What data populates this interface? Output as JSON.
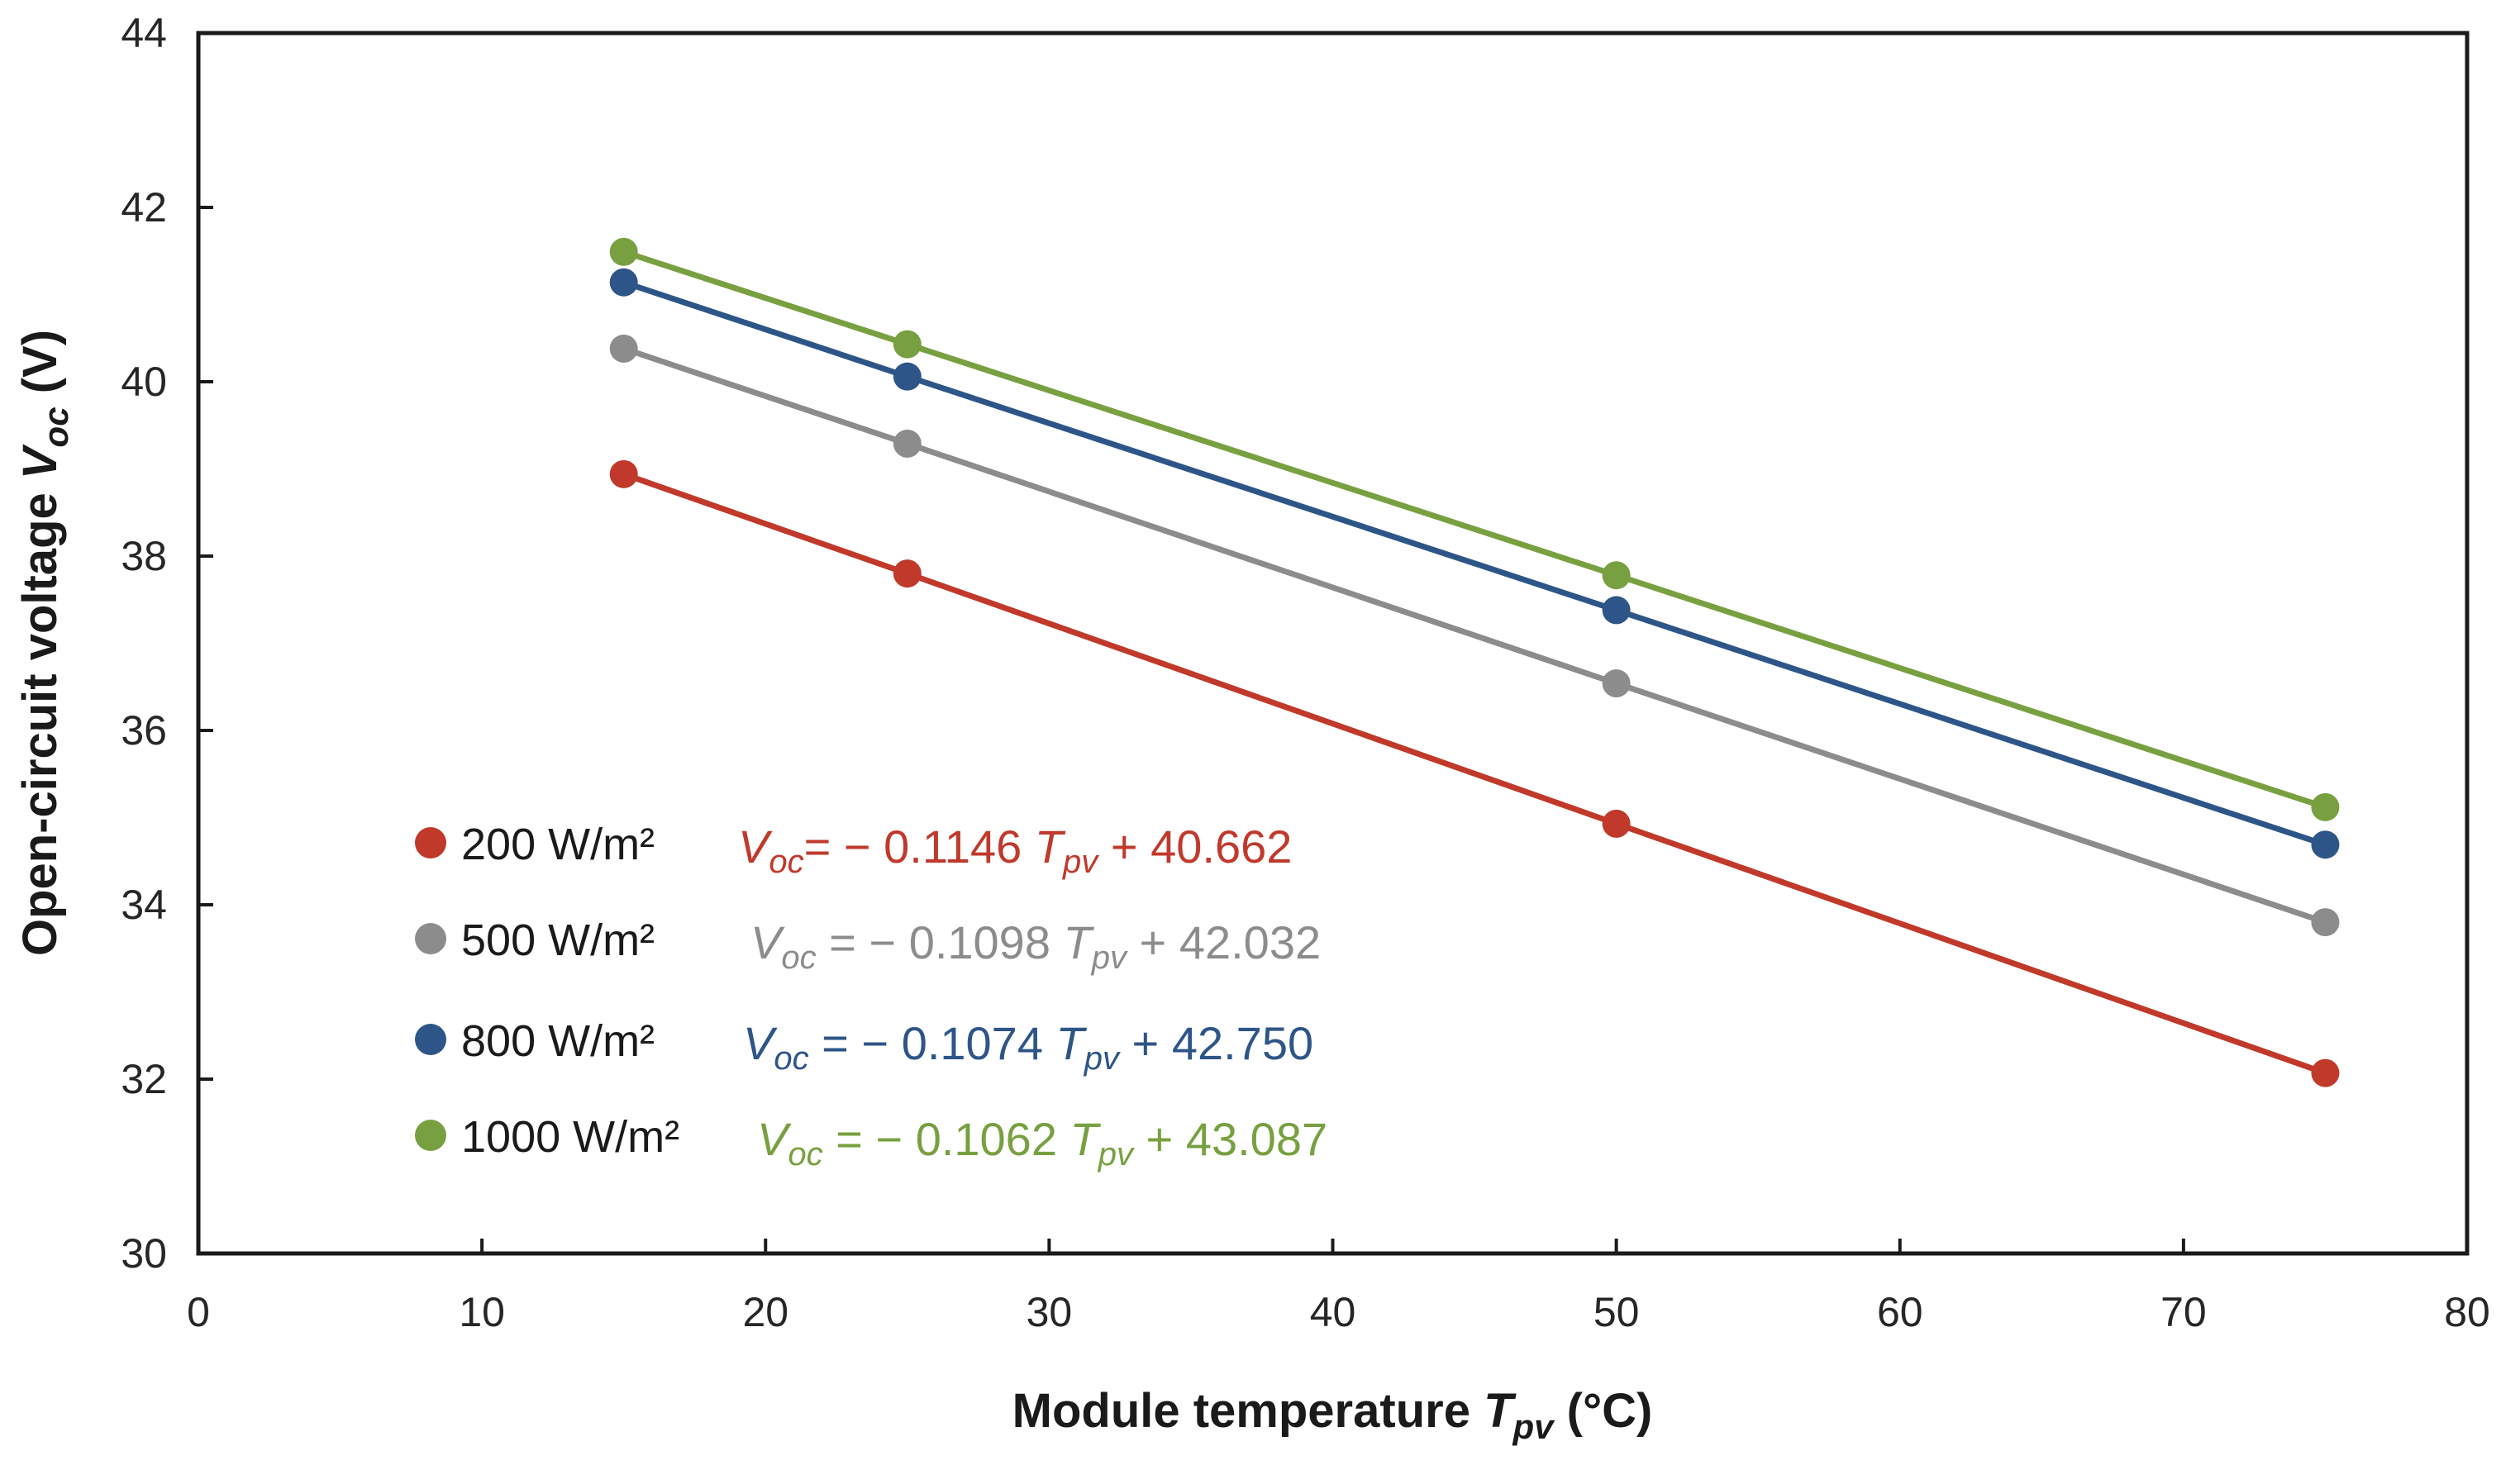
{
  "chart_data": {
    "type": "line",
    "title": "",
    "xlabel": {
      "main": "Module temperature ",
      "var": "T",
      "sub": "pv",
      "unit": " (°C)"
    },
    "ylabel": {
      "main": "Open-circuit voltage ",
      "var": "V",
      "sub": "oc",
      "unit": " (V)"
    },
    "xlim": [
      0,
      80
    ],
    "ylim": [
      30,
      44
    ],
    "x_ticks": [
      0,
      10,
      20,
      30,
      40,
      50,
      60,
      70,
      80
    ],
    "y_ticks": [
      30,
      32,
      34,
      36,
      38,
      40,
      42,
      44
    ],
    "grid": false,
    "legend_position": "bottom-left",
    "series": [
      {
        "name": "200 W/m²",
        "color": "#c0392b",
        "x": [
          15,
          25,
          50,
          75
        ],
        "y": [
          38.94,
          37.8,
          34.93,
          32.07
        ],
        "equation": {
          "var": "V",
          "sub": "oc",
          "mid": "= − 0.1146 ",
          "var2": "T",
          "sub2": "pv",
          "tail": " + 40.662"
        }
      },
      {
        "name": "500 W/m²",
        "color": "#8c8c8c",
        "x": [
          15,
          25,
          50,
          75
        ],
        "y": [
          40.38,
          39.29,
          36.54,
          33.8
        ],
        "equation": {
          "var": "V",
          "sub": "oc",
          "mid": " = − 0.1098 ",
          "var2": "T",
          "sub2": "pv",
          "tail": " + 42.032"
        }
      },
      {
        "name": "800 W/m²",
        "color": "#2e5587",
        "x": [
          15,
          25,
          50,
          75
        ],
        "y": [
          41.14,
          40.06,
          37.38,
          34.69
        ],
        "equation": {
          "var": "V",
          "sub": "oc",
          "mid": " = − 0.1074 ",
          "var2": "T",
          "sub2": "pv",
          "tail": " + 42.750"
        }
      },
      {
        "name": "1000 W/m²",
        "color": "#78a040",
        "x": [
          15,
          25,
          50,
          75
        ],
        "y": [
          41.49,
          40.43,
          37.78,
          35.12
        ],
        "equation": {
          "var": "V",
          "sub": "oc",
          "mid": " = − 0.1062 ",
          "var2": "T",
          "sub2": "pv",
          "tail": " + 43.087"
        }
      }
    ]
  }
}
